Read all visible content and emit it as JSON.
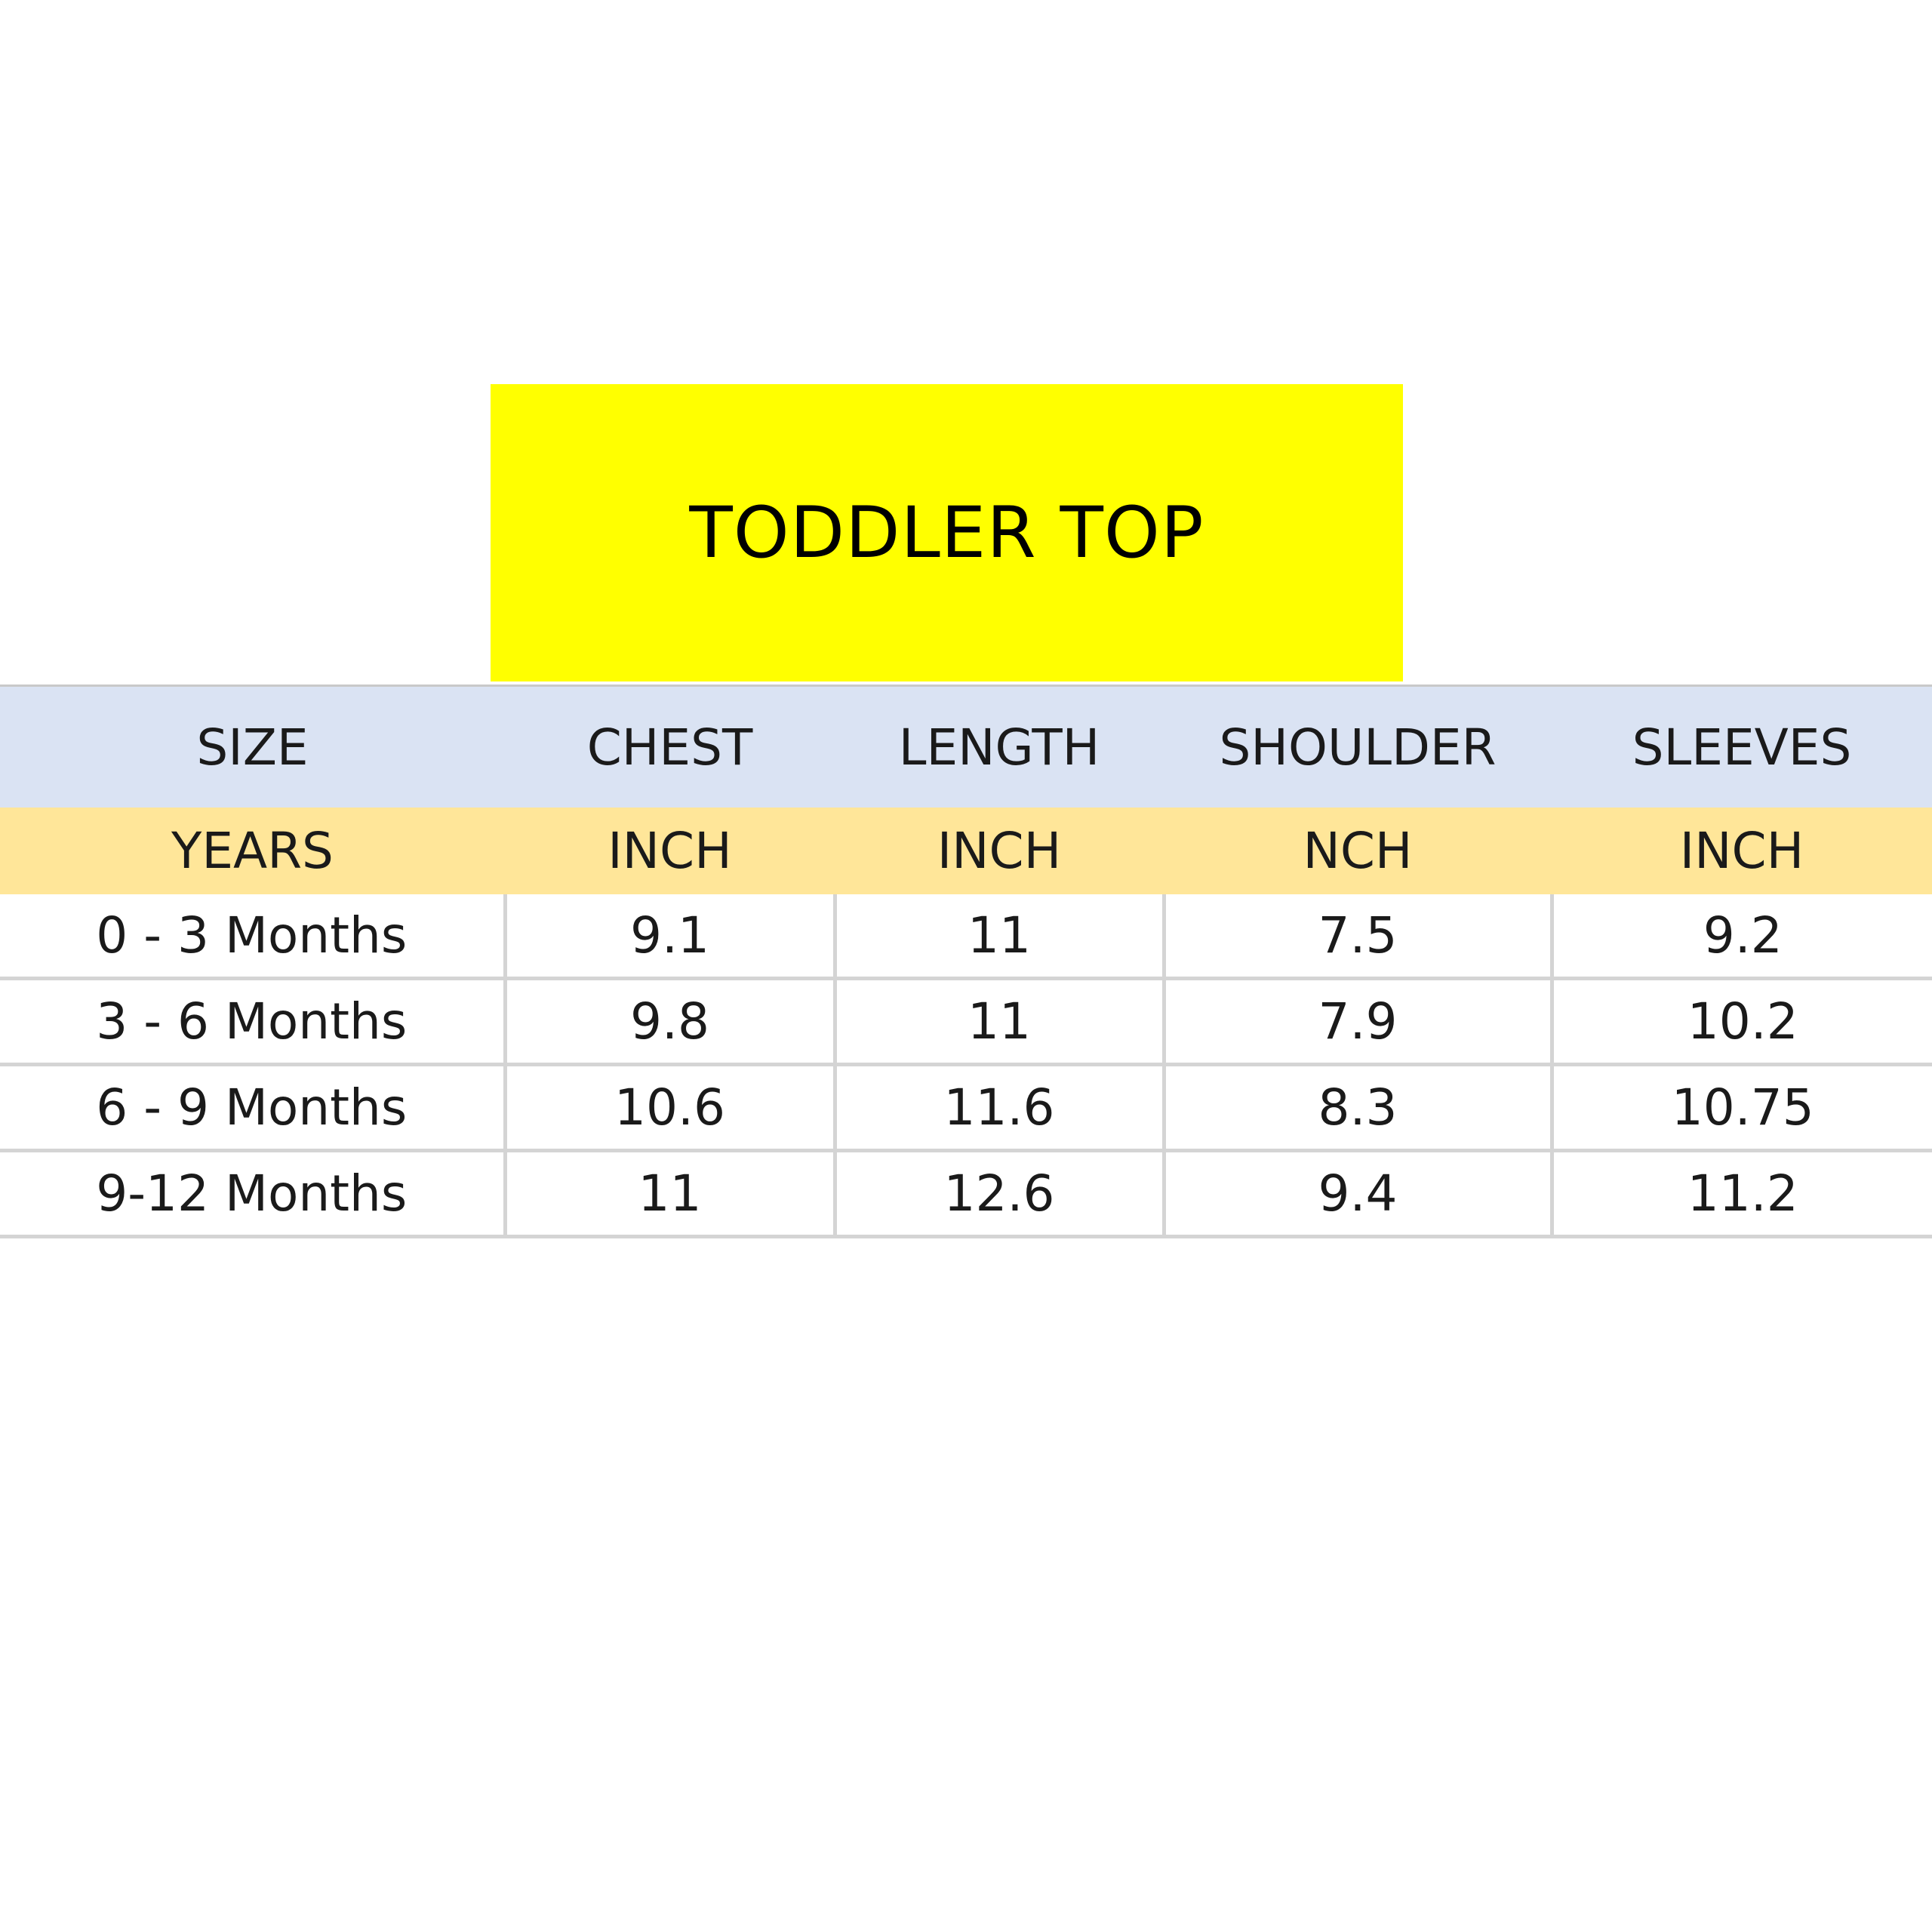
{
  "title": "TODDLER TOP",
  "table": {
    "headers": [
      "SIZE",
      "CHEST",
      "LENGTH",
      "SHOULDER",
      "SLEEVES"
    ],
    "units": [
      "YEARS",
      "INCH",
      "INCH",
      "NCH",
      "INCH"
    ],
    "rows": [
      [
        "0 - 3 Months",
        "9.1",
        "11",
        "7.5",
        "9.2"
      ],
      [
        "3 - 6 Months",
        "9.8",
        "11",
        "7.9",
        "10.2"
      ],
      [
        "6 - 9 Months",
        "10.6",
        "11.6",
        "8.3",
        "10.75"
      ],
      [
        "9-12 Months",
        "11",
        "12.6",
        "9.4",
        "11.2"
      ]
    ]
  },
  "colors": {
    "title_background": "#ffff00",
    "header_background": "#dae3f3",
    "unit_background": "#ffe699",
    "grid_line": "#d4d4d4"
  }
}
